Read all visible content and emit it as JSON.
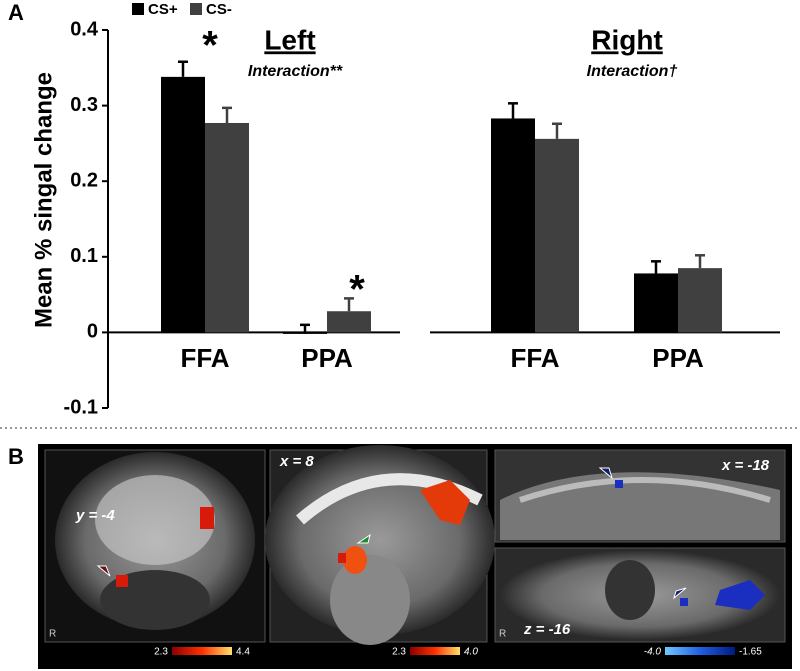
{
  "chart_data": {
    "type": "bar",
    "panel_label": "A",
    "y_label": "Mean % singal change",
    "categories": [
      "FFA",
      "PPA",
      "FFA",
      "PPA"
    ],
    "panels": [
      {
        "title": "Left",
        "subtitle": "Interaction**"
      },
      {
        "title": "Right",
        "subtitle": "Interaction†"
      }
    ],
    "series": [
      {
        "name": "CS+",
        "color": "#000000",
        "values": [
          0.338,
          -0.002,
          0.283,
          0.078
        ],
        "errors": [
          0.02,
          0.012,
          0.02,
          0.016
        ]
      },
      {
        "name": "CS-",
        "color": "#404040",
        "values": [
          0.277,
          0.028,
          0.256,
          0.085
        ],
        "errors": [
          0.02,
          0.017,
          0.02,
          0.017
        ]
      }
    ],
    "annotations": [
      "*",
      "*"
    ],
    "ylim": [
      -0.1,
      0.4
    ],
    "yticks": [
      -0.1,
      0,
      0.1,
      0.2,
      0.3,
      0.4
    ]
  },
  "panel_b": {
    "label": "B",
    "images": [
      {
        "coordinate": "y = -4",
        "orientation": "R"
      },
      {
        "coordinate": "x = 8"
      },
      {
        "coordinate": "x = -18"
      },
      {
        "coordinate": "z = -16",
        "orientation": "R"
      }
    ],
    "colorbars": [
      {
        "min": "2.3",
        "max": "4.4"
      },
      {
        "min": "2.3",
        "max": "4.0"
      },
      {
        "min": "-4.0",
        "max": "-1.65"
      }
    ]
  }
}
